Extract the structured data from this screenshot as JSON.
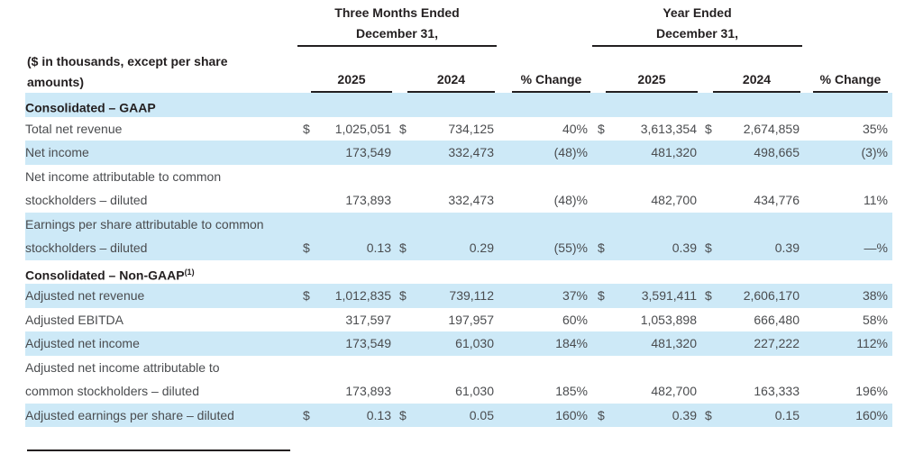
{
  "colors": {
    "row_highlight": "#cde9f7",
    "rule": "#231f20",
    "text": "#4a4c4f",
    "bold_text": "#231f20"
  },
  "header": {
    "corner_note_line1": "($ in thousands, except per share",
    "corner_note_line2": "amounts)",
    "groups": [
      {
        "line1": "Three Months Ended",
        "line2": "December 31,"
      },
      {
        "line1": "Year Ended",
        "line2": "December 31,"
      }
    ],
    "col_labels": [
      "2025",
      "2024",
      "% Change",
      "2025",
      "2024",
      "% Change"
    ]
  },
  "rows": [
    {
      "type": "section",
      "label": "Consolidated – GAAP",
      "sup": "",
      "highlight": true
    },
    {
      "type": "data",
      "lines": [
        "Total net revenue"
      ],
      "cells": {
        "d1": "$",
        "v1": "1,025,051",
        "d2": "$",
        "v2": "734,125",
        "p1": "40%",
        "d3": "$",
        "v3": "3,613,354",
        "d4": "$",
        "v4": "2,674,859",
        "p2": "35%"
      },
      "highlight": false
    },
    {
      "type": "data",
      "lines": [
        "Net income"
      ],
      "cells": {
        "d1": "",
        "v1": "173,549",
        "d2": "",
        "v2": "332,473",
        "p1": "(48)%",
        "d3": "",
        "v3": "481,320",
        "d4": "",
        "v4": "498,665",
        "p2": "(3)%"
      },
      "highlight": true
    },
    {
      "type": "data",
      "lines": [
        "Net income attributable to common",
        "stockholders – diluted"
      ],
      "cells": {
        "d1": "",
        "v1": "173,893",
        "d2": "",
        "v2": "332,473",
        "p1": "(48)%",
        "d3": "",
        "v3": "482,700",
        "d4": "",
        "v4": "434,776",
        "p2": "11%"
      },
      "highlight": false
    },
    {
      "type": "data",
      "lines": [
        "Earnings per share attributable to common",
        "stockholders – diluted"
      ],
      "cells": {
        "d1": "$",
        "v1": "0.13",
        "d2": "$",
        "v2": "0.29",
        "p1": "(55)%",
        "d3": "$",
        "v3": "0.39",
        "d4": "$",
        "v4": "0.39",
        "p2": "—%"
      },
      "highlight": true
    },
    {
      "type": "section",
      "label": "Consolidated – Non-GAAP",
      "sup": "(1)",
      "highlight": false
    },
    {
      "type": "data",
      "lines": [
        "Adjusted net revenue"
      ],
      "cells": {
        "d1": "$",
        "v1": "1,012,835",
        "d2": "$",
        "v2": "739,112",
        "p1": "37%",
        "d3": "$",
        "v3": "3,591,411",
        "d4": "$",
        "v4": "2,606,170",
        "p2": "38%"
      },
      "highlight": true
    },
    {
      "type": "data",
      "lines": [
        "Adjusted EBITDA"
      ],
      "cells": {
        "d1": "",
        "v1": "317,597",
        "d2": "",
        "v2": "197,957",
        "p1": "60%",
        "d3": "",
        "v3": "1,053,898",
        "d4": "",
        "v4": "666,480",
        "p2": "58%"
      },
      "highlight": false
    },
    {
      "type": "data",
      "lines": [
        "Adjusted net income"
      ],
      "cells": {
        "d1": "",
        "v1": "173,549",
        "d2": "",
        "v2": "61,030",
        "p1": "184%",
        "d3": "",
        "v3": "481,320",
        "d4": "",
        "v4": "227,222",
        "p2": "112%"
      },
      "highlight": true
    },
    {
      "type": "data",
      "lines": [
        "Adjusted net income attributable to",
        "common stockholders – diluted"
      ],
      "cells": {
        "d1": "",
        "v1": "173,893",
        "d2": "",
        "v2": "61,030",
        "p1": "185%",
        "d3": "",
        "v3": "482,700",
        "d4": "",
        "v4": "163,333",
        "p2": "196%"
      },
      "highlight": false
    },
    {
      "type": "data",
      "lines": [
        "Adjusted earnings per share – diluted"
      ],
      "cells": {
        "d1": "$",
        "v1": "0.13",
        "d2": "$",
        "v2": "0.05",
        "p1": "160%",
        "d3": "$",
        "v3": "0.39",
        "d4": "$",
        "v4": "0.15",
        "p2": "160%"
      },
      "highlight": true
    }
  ]
}
